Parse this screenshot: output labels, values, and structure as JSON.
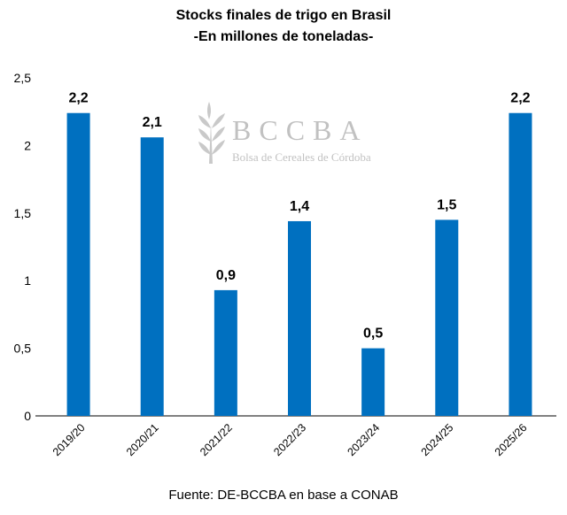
{
  "chart_data": {
    "type": "bar",
    "title": "Stocks finales de trigo en Brasil",
    "subtitle": "-En millones de toneladas-",
    "categories": [
      "2019/20",
      "2020/21",
      "2021/22",
      "2022/23",
      "2023/24",
      "2024/25",
      "2025/26"
    ],
    "values": [
      2.24,
      2.06,
      0.93,
      1.44,
      0.5,
      1.45,
      2.24
    ],
    "data_labels": [
      "2,2",
      "2,1",
      "0,9",
      "1,4",
      "0,5",
      "1,5",
      "2,2"
    ],
    "ylim": [
      0,
      2.5
    ],
    "yticks": [
      0,
      0.5,
      1,
      1.5,
      2,
      2.5
    ],
    "ytick_labels": [
      "0",
      "0,5",
      "1",
      "1,5",
      "2",
      "2,5"
    ],
    "xlabel": "",
    "ylabel": "",
    "grid": false,
    "bar_color": "#0070C0",
    "source": "Fuente: DE-BCCBA en base a CONAB"
  },
  "watermark": {
    "logo_text": "BCCBA",
    "logo_subtext": "Bolsa de Cereales de Córdoba"
  }
}
